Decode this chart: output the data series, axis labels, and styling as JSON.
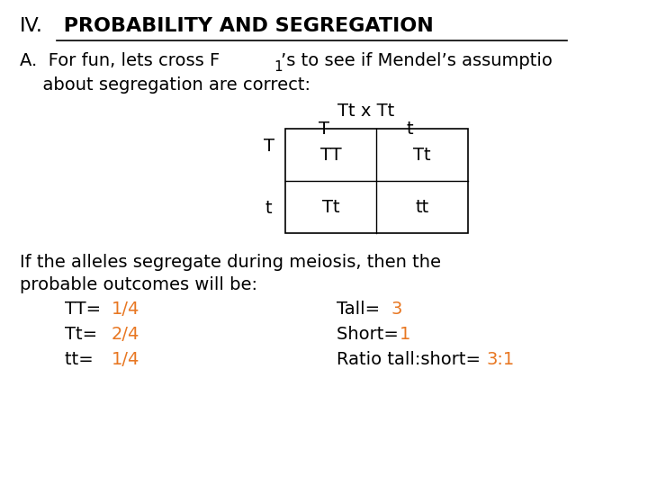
{
  "bg_color": "#ffffff",
  "title_roman": "IV.",
  "title_bold": " PROBABILITY AND SEGREGATION",
  "line_a_prefix": "A.  For fun, lets cross F",
  "line_a_sub": "1",
  "line_a_cont": "’s to see if Mendel’s assumptio",
  "line_a2": "  about segregation are correct:",
  "cross_label": "Tt x Tt",
  "col_headers": [
    "T",
    "t"
  ],
  "row_headers": [
    "T",
    "t"
  ],
  "cells": [
    [
      "TT",
      "Tt"
    ],
    [
      "Tt",
      "tt"
    ]
  ],
  "bottom_line1": "If the alleles segregate during meiosis, then the",
  "bottom_line2": "probable outcomes will be:",
  "tt_label": "TT= ",
  "tt_val": "1/4",
  "tr_label": "Tt= ",
  "tr_val": "2/4",
  "ss_label": "tt= ",
  "ss_val": "1/4",
  "tall_label": "Tall= ",
  "tall_val": "3",
  "short_label": "Short= ",
  "short_val": "1",
  "ratio_label": "Ratio tall:short= ",
  "ratio_val": "3:1",
  "orange_color": "#E87722",
  "black_color": "#000000",
  "font_size_title": 16,
  "font_size_body": 14
}
